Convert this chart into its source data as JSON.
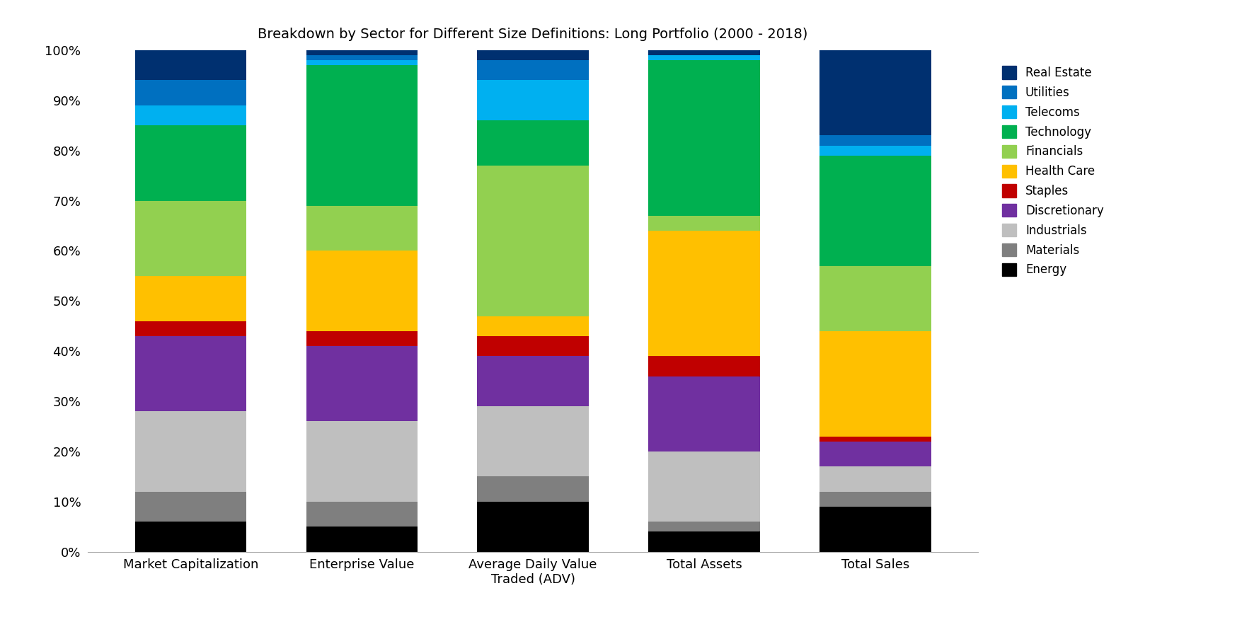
{
  "title": "Breakdown by Sector for Different Size Definitions: Long Portfolio (2000 - 2018)",
  "categories": [
    "Market Capitalization",
    "Enterprise Value",
    "Average Daily Value\nTraded (ADV)",
    "Total Assets",
    "Total Sales"
  ],
  "sectors": [
    "Energy",
    "Materials",
    "Industrials",
    "Discretionary",
    "Staples",
    "Health Care",
    "Financials",
    "Technology",
    "Telecoms",
    "Utilities",
    "Real Estate"
  ],
  "colors": [
    "#000000",
    "#7f7f7f",
    "#bfbfbf",
    "#7030a0",
    "#c00000",
    "#ffc000",
    "#92d050",
    "#00b050",
    "#00b0f0",
    "#0070c0",
    "#003070"
  ],
  "values": {
    "Market Capitalization": [
      6,
      6,
      16,
      15,
      3,
      9,
      15,
      15,
      4,
      5,
      6
    ],
    "Enterprise Value": [
      5,
      5,
      16,
      15,
      3,
      16,
      9,
      28,
      1,
      1,
      1
    ],
    "Average Daily Value\nTraded (ADV)": [
      10,
      5,
      14,
      10,
      4,
      4,
      30,
      9,
      8,
      4,
      2
    ],
    "Total Assets": [
      4,
      2,
      14,
      15,
      4,
      25,
      3,
      31,
      1,
      0,
      1
    ],
    "Total Sales": [
      9,
      3,
      5,
      5,
      1,
      21,
      13,
      22,
      2,
      2,
      17
    ]
  },
  "figsize": [
    17.72,
    8.86
  ],
  "dpi": 100
}
